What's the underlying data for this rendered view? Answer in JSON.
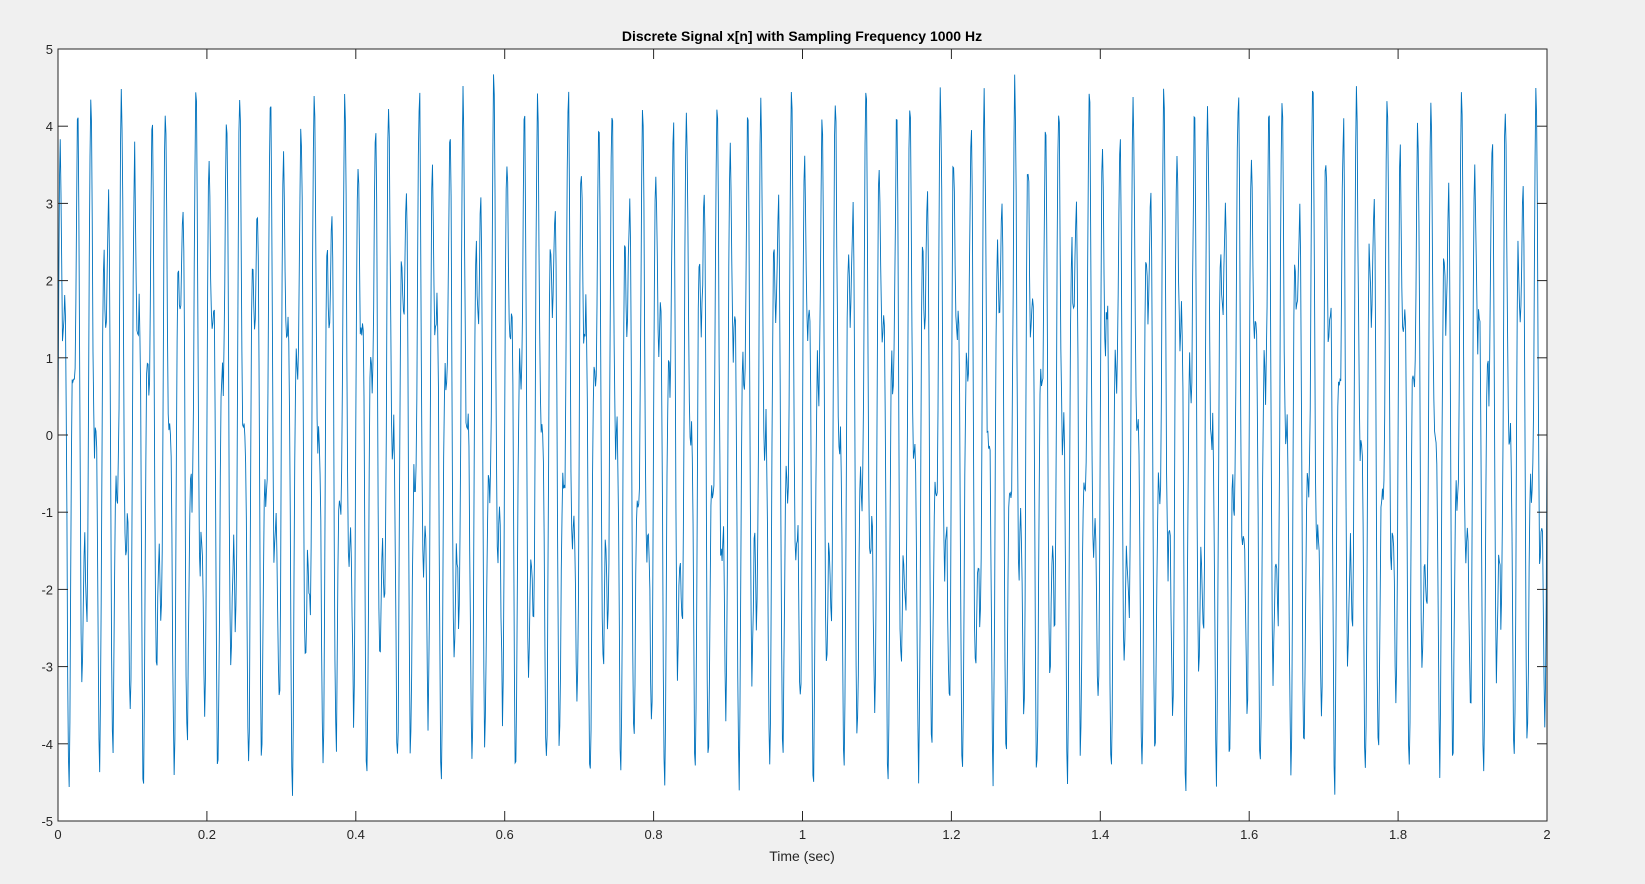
{
  "figure": {
    "background": "#f0f0f0",
    "axes_background": "#ffffff",
    "axis_color": "#262626"
  },
  "chart_data": {
    "type": "line",
    "title": "Discrete Signal x[n] with Sampling Frequency 1000 Hz",
    "xlabel": "Time (sec)",
    "ylabel": "",
    "xlim": [
      0,
      2
    ],
    "ylim": [
      -5,
      5
    ],
    "x_ticks": [
      0,
      0.2,
      0.4,
      0.6,
      0.8,
      1,
      1.2,
      1.4,
      1.6,
      1.8,
      2
    ],
    "x_tick_labels": [
      "0",
      "0.2",
      "0.4",
      "0.6",
      "0.8",
      "1",
      "1.2",
      "1.4",
      "1.6",
      "1.8",
      "2"
    ],
    "y_ticks": [
      -5,
      -4,
      -3,
      -2,
      -1,
      0,
      1,
      2,
      3,
      4,
      5
    ],
    "y_tick_labels": [
      "-5",
      "-4",
      "-3",
      "-2",
      "-1",
      "0",
      "1",
      "2",
      "3",
      "4",
      "5"
    ],
    "grid": false,
    "legend": "none",
    "series": [
      {
        "color": "#0072bd",
        "sampling_frequency_hz": 1000,
        "t_start": 0,
        "t_end": 2,
        "components": [
          {
            "amplitude": 3,
            "frequency_hz": 50
          },
          {
            "amplitude": 1.5,
            "frequency_hz": 120
          }
        ],
        "noise_amplitude": 0.25
      }
    ]
  }
}
